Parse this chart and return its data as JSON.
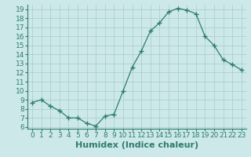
{
  "x": [
    0,
    1,
    2,
    3,
    4,
    5,
    6,
    7,
    8,
    9,
    10,
    11,
    12,
    13,
    14,
    15,
    16,
    17,
    18,
    19,
    20,
    21,
    22,
    23
  ],
  "y": [
    8.7,
    9.0,
    8.3,
    7.8,
    7.0,
    7.0,
    6.4,
    6.1,
    7.2,
    7.4,
    10.0,
    12.6,
    14.4,
    16.6,
    17.5,
    18.7,
    19.1,
    18.9,
    18.5,
    16.0,
    15.0,
    13.4,
    12.9,
    12.3
  ],
  "line_color": "#2e7d6e",
  "marker": "+",
  "marker_size": 4,
  "bg_color": "#cce8e8",
  "grid_color": "#a8cccc",
  "xlabel": "Humidex (Indice chaleur)",
  "ylim": [
    5.8,
    19.5
  ],
  "xlim": [
    -0.5,
    23.5
  ],
  "yticks": [
    6,
    7,
    8,
    9,
    10,
    11,
    12,
    13,
    14,
    15,
    16,
    17,
    18,
    19
  ],
  "xticks": [
    0,
    1,
    2,
    3,
    4,
    5,
    6,
    7,
    8,
    9,
    10,
    11,
    12,
    13,
    14,
    15,
    16,
    17,
    18,
    19,
    20,
    21,
    22,
    23
  ],
  "tick_label_fontsize": 6.5,
  "xlabel_fontsize": 8
}
